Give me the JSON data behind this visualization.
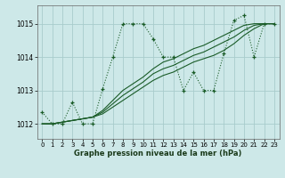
{
  "title": "Graphe pression niveau de la mer (hPa)",
  "bg_color": "#cde8e8",
  "grid_color": "#a8cccc",
  "line_color": "#1a5c28",
  "xlim": [
    -0.5,
    23.5
  ],
  "ylim": [
    1011.55,
    1015.55
  ],
  "yticks": [
    1012,
    1013,
    1014,
    1015
  ],
  "xticks": [
    0,
    1,
    2,
    3,
    4,
    5,
    6,
    7,
    8,
    9,
    10,
    11,
    12,
    13,
    14,
    15,
    16,
    17,
    18,
    19,
    20,
    21,
    22,
    23
  ],
  "series_main": [
    1012.35,
    1012.0,
    1012.0,
    1012.65,
    1012.0,
    1012.0,
    1013.05,
    1014.0,
    1015.0,
    1015.0,
    1015.0,
    1014.55,
    1014.0,
    1014.0,
    1013.0,
    1013.55,
    1013.0,
    1013.0,
    1014.1,
    1015.1,
    1015.25,
    1014.0,
    1015.0,
    1015.0
  ],
  "series_t1": [
    1012.0,
    1012.0,
    1012.05,
    1012.1,
    1012.15,
    1012.2,
    1012.3,
    1012.5,
    1012.7,
    1012.9,
    1013.1,
    1013.3,
    1013.45,
    1013.55,
    1013.7,
    1013.85,
    1013.95,
    1014.05,
    1014.2,
    1014.4,
    1014.65,
    1014.85,
    1015.0,
    1015.0
  ],
  "series_t2": [
    1012.0,
    1012.0,
    1012.05,
    1012.1,
    1012.15,
    1012.2,
    1012.35,
    1012.6,
    1012.85,
    1013.05,
    1013.25,
    1013.5,
    1013.65,
    1013.75,
    1013.9,
    1014.05,
    1014.15,
    1014.3,
    1014.45,
    1014.6,
    1014.8,
    1014.95,
    1015.0,
    1015.0
  ],
  "series_t3": [
    1012.0,
    1012.0,
    1012.05,
    1012.1,
    1012.15,
    1012.2,
    1012.4,
    1012.7,
    1013.0,
    1013.2,
    1013.4,
    1013.65,
    1013.85,
    1013.95,
    1014.1,
    1014.25,
    1014.35,
    1014.5,
    1014.65,
    1014.8,
    1014.95,
    1015.0,
    1015.0,
    1015.0
  ]
}
